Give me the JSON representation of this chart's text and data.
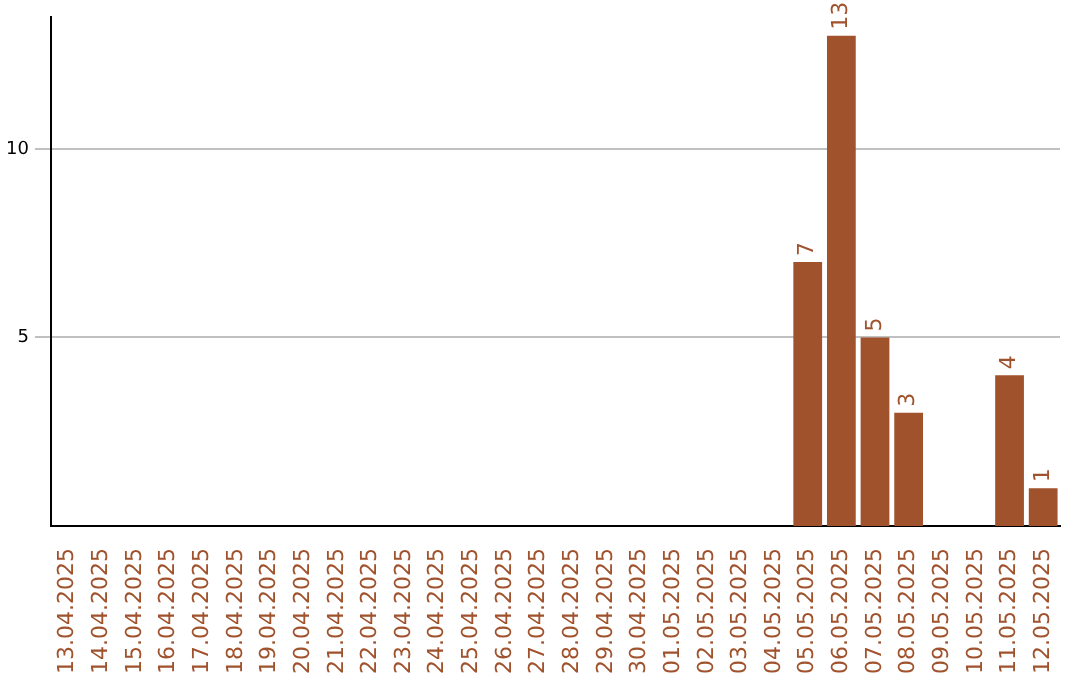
{
  "chart_data": {
    "type": "bar",
    "categories": [
      "13.04.2025",
      "14.04.2025",
      "15.04.2025",
      "16.04.2025",
      "17.04.2025",
      "18.04.2025",
      "19.04.2025",
      "20.04.2025",
      "21.04.2025",
      "22.04.2025",
      "23.04.2025",
      "24.04.2025",
      "25.04.2025",
      "26.04.2025",
      "27.04.2025",
      "28.04.2025",
      "29.04.2025",
      "30.04.2025",
      "01.05.2025",
      "02.05.2025",
      "03.05.2025",
      "04.05.2025",
      "05.05.2025",
      "06.05.2025",
      "07.05.2025",
      "08.05.2025",
      "09.05.2025",
      "10.05.2025",
      "11.05.2025",
      "12.05.2025"
    ],
    "values": [
      null,
      null,
      null,
      null,
      null,
      null,
      null,
      null,
      null,
      null,
      null,
      null,
      null,
      null,
      null,
      null,
      null,
      null,
      null,
      null,
      null,
      null,
      7,
      13,
      5,
      3,
      null,
      null,
      4,
      1
    ],
    "color": "#a0522d",
    "ylim": [
      0,
      13.5
    ],
    "yticks": [
      5,
      10
    ],
    "grid": "y",
    "data_labels": true
  }
}
